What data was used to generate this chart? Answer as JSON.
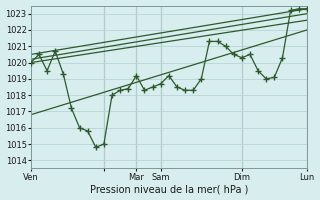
{
  "xlabel": "Pression niveau de la mer( hPa )",
  "bg_color": "#d8eded",
  "grid_color": "#b8d4d4",
  "line_color": "#2d5a2d",
  "ylim": [
    1013.5,
    1023.5
  ],
  "yticks": [
    1014,
    1015,
    1016,
    1017,
    1018,
    1019,
    1020,
    1021,
    1022,
    1023
  ],
  "xlim": [
    0,
    34
  ],
  "x_tick_positions": [
    0,
    9,
    13,
    16,
    26,
    34
  ],
  "x_tick_labels": [
    "Ven",
    "",
    "Mar",
    "Sam",
    "Dim",
    "Lun"
  ],
  "day_lines": [
    9,
    13,
    16,
    26,
    34
  ],
  "series_main": {
    "x": [
      0,
      1,
      2,
      3,
      4,
      5,
      6,
      7,
      8,
      9,
      10,
      11,
      12,
      13,
      14,
      15,
      16,
      17,
      18,
      19,
      20,
      21,
      22,
      23,
      24,
      25,
      26,
      27,
      28,
      29,
      30,
      31,
      32,
      33,
      34
    ],
    "y": [
      1020.0,
      1020.5,
      1019.5,
      1020.7,
      1019.3,
      1017.2,
      1016.0,
      1015.8,
      1014.8,
      1015.0,
      1018.0,
      1018.3,
      1018.4,
      1019.2,
      1018.3,
      1018.5,
      1018.7,
      1019.2,
      1018.5,
      1018.3,
      1018.3,
      1019.0,
      1021.3,
      1021.3,
      1021.0,
      1020.5,
      1020.3,
      1020.5,
      1019.5,
      1019.0,
      1019.1,
      1020.3,
      1023.2,
      1023.3,
      1023.3
    ]
  },
  "trend_line1": {
    "x": [
      0,
      34
    ],
    "y": [
      1020.5,
      1023.3
    ]
  },
  "trend_line2": {
    "x": [
      0,
      34
    ],
    "y": [
      1020.2,
      1023.0
    ]
  },
  "trend_line3": {
    "x": [
      0,
      34
    ],
    "y": [
      1020.0,
      1022.6
    ]
  },
  "trend_line4": {
    "x": [
      0,
      34
    ],
    "y": [
      1016.8,
      1022.0
    ]
  }
}
